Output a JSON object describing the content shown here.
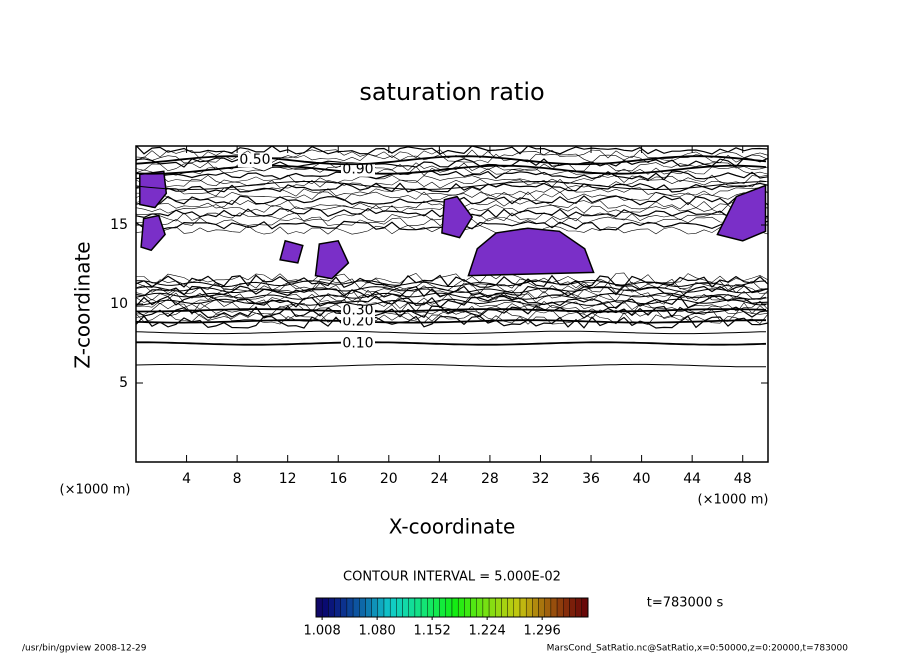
{
  "chart_data": {
    "type": "contour",
    "title": "saturation ratio",
    "x_label": "X-coordinate",
    "y_label": "Z-coordinate",
    "x_unit": "(×1000 m)",
    "y_unit": "(×1000 m)",
    "xlim": [
      0,
      50
    ],
    "xticks": [
      4,
      8,
      12,
      16,
      20,
      24,
      28,
      32,
      36,
      40,
      44,
      48
    ],
    "ylim": [
      0,
      20
    ],
    "yticks": [
      5,
      10,
      15
    ],
    "contour_interval": "CONTOUR INTERVAL = 5.000E-02",
    "contours": [
      {
        "z": 6.1
      },
      {
        "level": {
          "value": 0.1,
          "label": "0.10"
        },
        "z": 7.5
      },
      {
        "z": 8.2
      },
      {
        "level": {
          "value": 0.2,
          "label": "0.20"
        },
        "z": 8.9
      },
      {
        "level": {
          "value": 0.3,
          "label": "0.30"
        },
        "z": 9.6
      },
      {
        "z": 10.1
      },
      {
        "z": 10.5
      },
      {
        "z": 10.9
      },
      {
        "z": 11.3
      },
      {
        "z": 17.5
      },
      {
        "level": {
          "value": 0.9,
          "label": "0.90"
        },
        "z": 18.5
      },
      {
        "level": {
          "value": 0.5,
          "label": "0.50"
        },
        "z": 19.1
      }
    ],
    "shaded_color": "#7a2fc8",
    "shaded_regions": [
      {
        "x": [
          26.3,
          27,
          28.5,
          31,
          33.5,
          35.5,
          36.2
        ],
        "y": [
          11.8,
          13.5,
          14.5,
          14.8,
          14.6,
          13.5,
          12.0
        ]
      },
      {
        "x": [
          0.3,
          0.3,
          2.2,
          2.4,
          1.5
        ],
        "y": [
          16.3,
          18.2,
          18.4,
          17.0,
          16.1
        ]
      },
      {
        "x": [
          0.4,
          0.6,
          1.8,
          2.3,
          1.2
        ],
        "y": [
          13.6,
          15.4,
          15.6,
          14.4,
          13.4
        ]
      },
      {
        "x": [
          24.2,
          24.4,
          25.4,
          26.6,
          25.6
        ],
        "y": [
          14.5,
          16.6,
          16.8,
          15.5,
          14.2
        ]
      },
      {
        "x": [
          14.2,
          14.5,
          16.0,
          16.8,
          15.5
        ],
        "y": [
          11.8,
          13.8,
          14.0,
          12.6,
          11.6
        ]
      },
      {
        "x": [
          11.4,
          11.8,
          13.2,
          12.8
        ],
        "y": [
          12.8,
          14.0,
          13.7,
          12.6
        ]
      },
      {
        "x": [
          46.0,
          47.5,
          49.8,
          49.8,
          48.0
        ],
        "y": [
          14.4,
          16.8,
          17.5,
          14.6,
          14.0
        ]
      }
    ],
    "colorbar": {
      "clim": [
        1.0,
        1.356
      ],
      "ticks": [
        1.008,
        {
          "value": 1.08,
          "label": "1.080"
        },
        1.152,
        1.224,
        1.296
      ]
    },
    "time_label": "t=783000 s",
    "footer_left": "/usr/bin/gpview  2008-12-29",
    "footer_right": "MarsCond_SatRatio.nc@SatRatio,x=0:50000,z=0:20000,t=783000"
  }
}
